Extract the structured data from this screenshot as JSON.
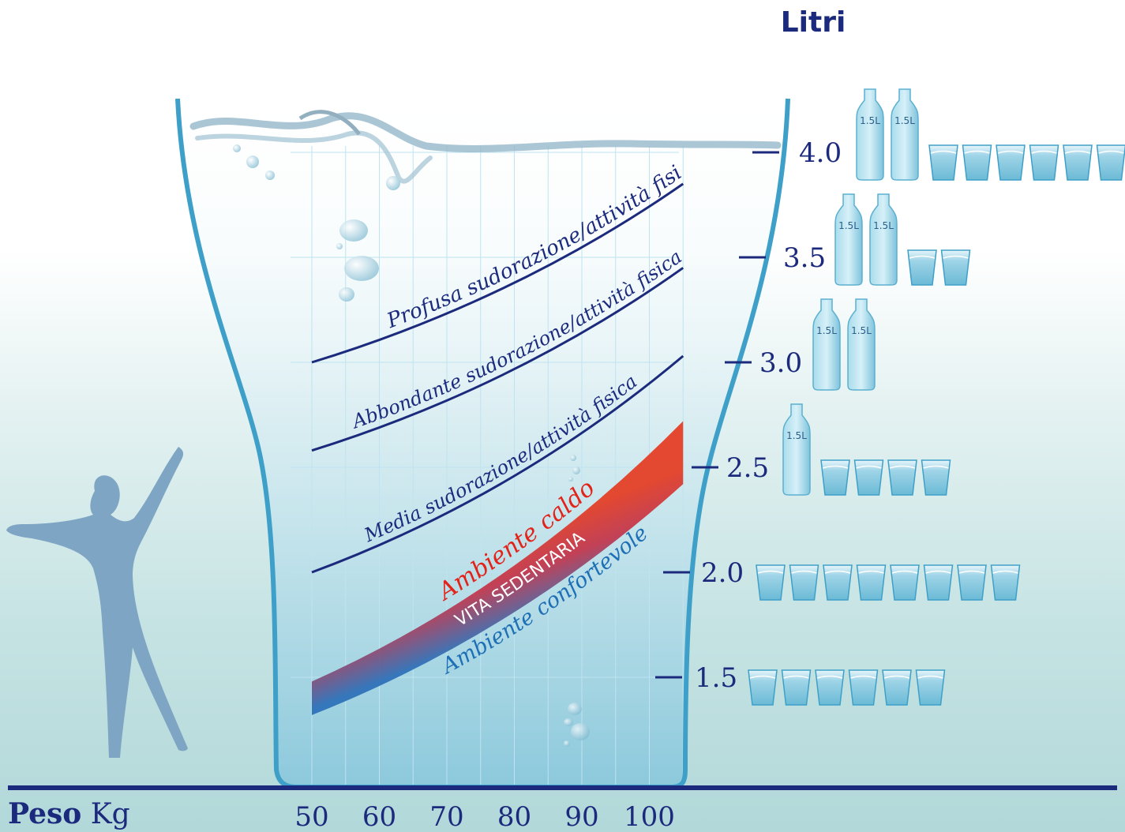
{
  "chart_data": {
    "type": "line",
    "title": "",
    "xlabel_bold": "Peso",
    "xlabel_unit": "Kg",
    "ylabel": "Litri",
    "x_ticks": [
      "50",
      "60",
      "70",
      "80",
      "90",
      "100"
    ],
    "y_ticks": [
      "1.5",
      "2.0",
      "2.5",
      "3.0",
      "3.5",
      "4.0"
    ],
    "xlim": [
      50,
      105
    ],
    "ylim": [
      1.5,
      4.0
    ],
    "grid": true,
    "series": [
      {
        "name": "Profusa sudorazione/attività fisica",
        "x": [
          50,
          105
        ],
        "y": [
          3.0,
          3.85
        ],
        "color": "#1b2a7c"
      },
      {
        "name": "Abbondante sudorazione/attività fisica",
        "x": [
          50,
          105
        ],
        "y": [
          2.58,
          3.45
        ],
        "color": "#1b2a7c"
      },
      {
        "name": "Media sudorazione/attività fisica",
        "x": [
          50,
          105
        ],
        "y": [
          2.0,
          3.03
        ],
        "color": "#1b2a7c"
      },
      {
        "name": "Ambiente caldo",
        "x": [
          50,
          105
        ],
        "y": [
          1.48,
          2.72
        ],
        "color": "#e2231a"
      },
      {
        "name": "Ambiente confortevole",
        "x": [
          50,
          105
        ],
        "y": [
          1.32,
          2.42
        ],
        "color": "#1e6fb5"
      }
    ],
    "band_label": "VITA SEDENTARIA",
    "drink_guide": [
      {
        "litri": "4.0",
        "bottles": 2,
        "glasses": 6
      },
      {
        "litri": "3.5",
        "bottles": 2,
        "glasses": 2
      },
      {
        "litri": "3.0",
        "bottles": 2,
        "glasses": 0
      },
      {
        "litri": "2.5",
        "bottles": 1,
        "glasses": 4
      },
      {
        "litri": "2.0",
        "bottles": 0,
        "glasses": 8
      },
      {
        "litri": "1.5",
        "bottles": 0,
        "glasses": 6
      }
    ],
    "bottle_label": "1.5L"
  },
  "colors": {
    "axis": "#1b2a7c",
    "glass_outline": "#3ea0c8",
    "grid": "#bfe3f0",
    "figure": "#7ea5c4",
    "bottle": "#8fcde3"
  }
}
